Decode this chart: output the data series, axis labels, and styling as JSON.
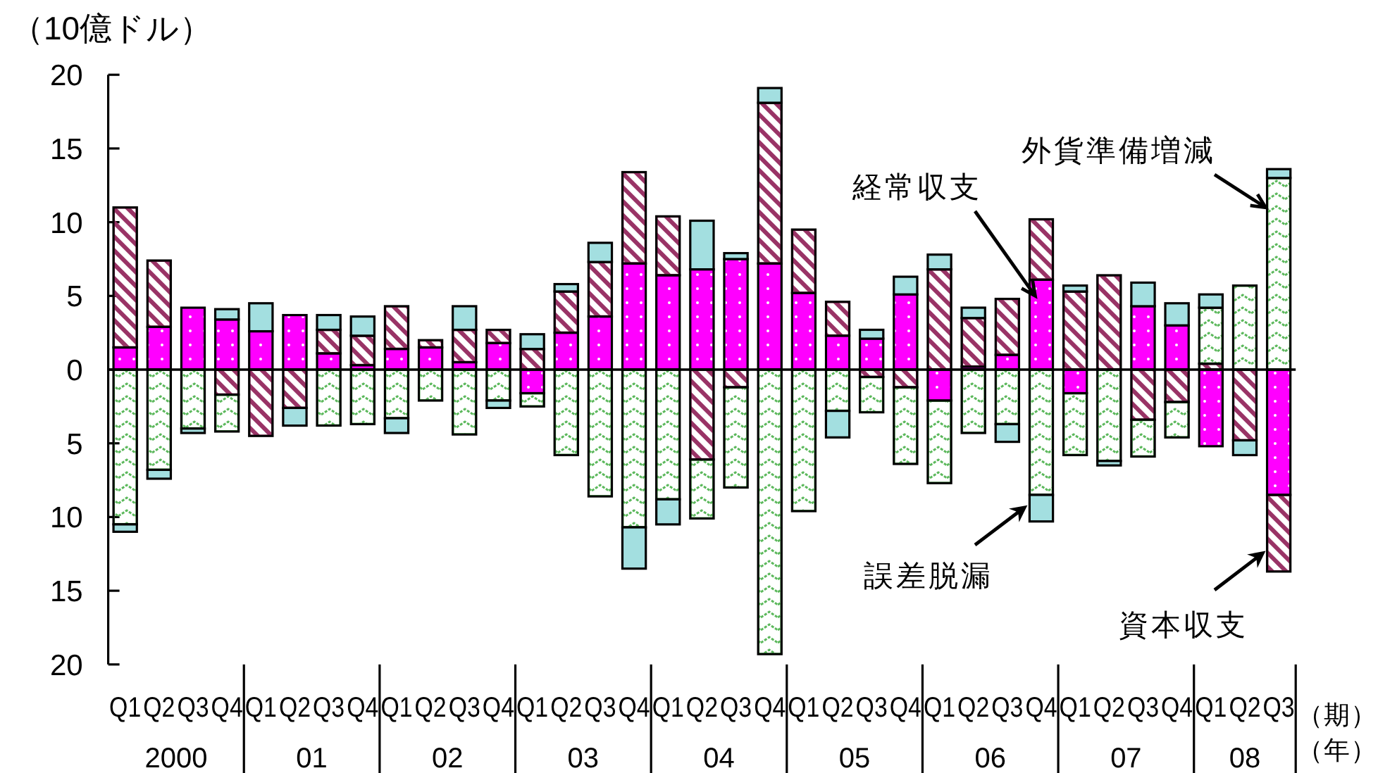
{
  "chart_data": {
    "type": "bar",
    "stacked": true,
    "ylabel": "（10億ドル）",
    "xlabel": "（期）",
    "categories": [
      "Q1",
      "Q2",
      "Q3",
      "Q4",
      "Q1",
      "Q2",
      "Q3",
      "Q4",
      "Q1",
      "Q2",
      "Q3",
      "Q4",
      "Q1",
      "Q2",
      "Q3",
      "Q4",
      "Q1",
      "Q2",
      "Q3",
      "Q4",
      "Q1",
      "Q2",
      "Q3",
      "Q4",
      "Q1",
      "Q2",
      "Q3",
      "Q4",
      "Q1",
      "Q2",
      "Q3",
      "Q4",
      "Q1",
      "Q2",
      "Q3"
    ],
    "series": [
      {
        "name": "経常収支",
        "color": "#ff00ff",
        "values": [
          1.5,
          2.9,
          4.2,
          3.4,
          2.6,
          3.7,
          1.1,
          0.3,
          1.4,
          1.5,
          0.5,
          1.8,
          -1.6,
          2.5,
          3.6,
          7.2,
          6.4,
          6.8,
          7.5,
          7.2,
          5.2,
          2.3,
          2.1,
          5.1,
          -2.1,
          0.2,
          1.0,
          6.1,
          -1.6,
          0,
          4.3,
          3.0,
          -5.2,
          0,
          -8.5
        ]
      },
      {
        "name": "資本収支",
        "color": "#993366",
        "values": [
          9.5,
          4.5,
          0,
          -1.7,
          -4.5,
          -2.6,
          1.6,
          2.0,
          2.9,
          0.5,
          2.2,
          0.9,
          1.4,
          2.8,
          3.7,
          6.2,
          4.0,
          -6.1,
          -1.2,
          10.9,
          4.3,
          2.3,
          -0.5,
          -1.2,
          6.8,
          3.3,
          3.8,
          4.1,
          5.3,
          6.4,
          -3.4,
          -2.2,
          0.4,
          -4.8,
          -5.2
        ]
      },
      {
        "name": "外貨準備増減",
        "color": "#5cb85c",
        "values": [
          -10.5,
          -6.8,
          -4.0,
          -2.5,
          0,
          0,
          -3.8,
          -3.7,
          -3.3,
          -2.1,
          -4.4,
          -2.1,
          -0.9,
          -5.8,
          -8.6,
          -10.7,
          -8.8,
          -4.0,
          -6.8,
          -19.3,
          -9.6,
          -2.8,
          -2.4,
          -5.2,
          -5.6,
          -4.3,
          -3.7,
          -8.5,
          -4.2,
          -6.2,
          -2.5,
          -2.4,
          3.8,
          5.7,
          13.0
        ]
      },
      {
        "name": "誤差脱漏",
        "color": "#a3dfe0",
        "values": [
          -0.5,
          -0.6,
          -0.3,
          0.7,
          1.9,
          -1.2,
          1.0,
          1.3,
          -1.0,
          0,
          1.6,
          -0.5,
          1.0,
          0.5,
          1.3,
          -2.8,
          -1.7,
          3.3,
          0.4,
          1.0,
          0,
          -1.8,
          0.6,
          1.2,
          1.0,
          0.7,
          -1.2,
          -1.8,
          0.4,
          -0.3,
          1.6,
          1.5,
          0.9,
          -1.0,
          0.6
        ]
      }
    ],
    "ylim": [
      -20,
      20
    ],
    "yticks": [
      {
        "value": -20,
        "label": "20"
      },
      {
        "value": -15,
        "label": "15"
      },
      {
        "value": -10,
        "label": "10"
      },
      {
        "value": -5,
        "label": "5"
      },
      0,
      5,
      10,
      15,
      20
    ],
    "annotations": [
      "2000",
      "01",
      "02",
      "03",
      "04",
      "05",
      "06",
      "07",
      "08",
      "（年）"
    ]
  }
}
